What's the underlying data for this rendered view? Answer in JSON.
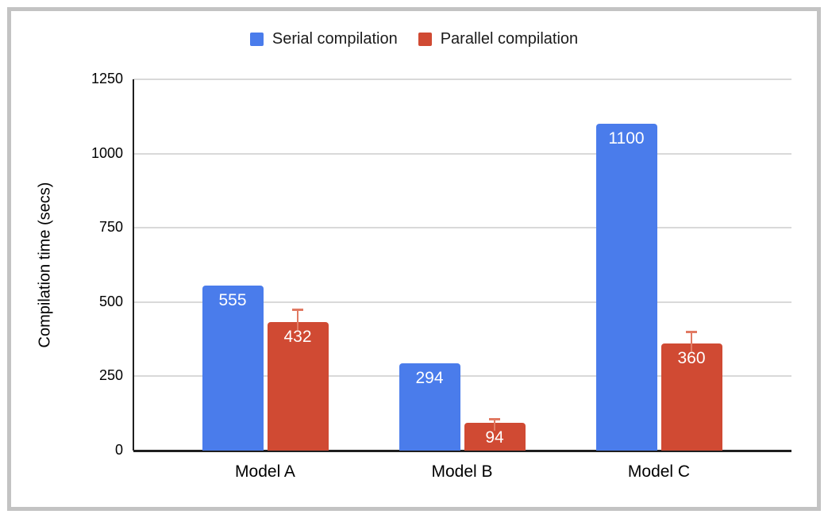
{
  "chart_data": {
    "type": "bar",
    "title": "",
    "categories": [
      "Model A",
      "Model B",
      "Model C"
    ],
    "series": [
      {
        "name": "Serial compilation",
        "values": [
          555,
          294,
          1100
        ],
        "color": "#4a7ceb"
      },
      {
        "name": "Parallel compilation",
        "values": [
          432,
          94,
          360
        ],
        "color": "#d04a33",
        "error_plus": [
          43,
          13,
          40
        ],
        "error_color": "#e17a63"
      }
    ],
    "xlabel": "",
    "ylabel": "Compilation time (secs)",
    "ylim": [
      0,
      1250
    ],
    "yticks": [
      0,
      250,
      500,
      750,
      1000,
      1250
    ],
    "grid": "horizontal",
    "legend_position": "top",
    "value_labels": "inside-top",
    "value_label_color": "#ffffff"
  },
  "colors": {
    "background": "#ffffff",
    "frame_border": "#c3c3c3",
    "gridline": "#d9d9d9",
    "axis_line": "#1f1f1f",
    "text": "#000000"
  }
}
